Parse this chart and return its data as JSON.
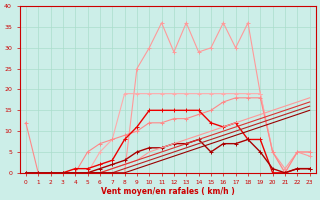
{
  "title": "",
  "xlabel": "Vent moyen/en rafales ( km/h )",
  "ylabel": "",
  "xlim": [
    -0.5,
    23.5
  ],
  "ylim": [
    0,
    40
  ],
  "xticks": [
    0,
    1,
    2,
    3,
    4,
    5,
    6,
    7,
    8,
    9,
    10,
    11,
    12,
    13,
    14,
    15,
    16,
    17,
    18,
    19,
    20,
    21,
    22,
    23
  ],
  "yticks": [
    0,
    5,
    10,
    15,
    20,
    25,
    30,
    35,
    40
  ],
  "background_color": "#cceee8",
  "grid_color": "#aaddcc",
  "axis_color": "#cc0000",
  "series": [
    {
      "x": [
        0,
        1,
        2,
        3,
        4,
        5,
        6,
        7,
        8,
        9,
        10,
        11,
        12,
        13,
        14,
        15,
        16,
        17,
        18,
        19,
        20,
        21,
        22,
        23
      ],
      "y": [
        0,
        0,
        0,
        0,
        0,
        0,
        0,
        0,
        0,
        25,
        30,
        36,
        29,
        36,
        29,
        30,
        36,
        30,
        36,
        19,
        5,
        1,
        5,
        4
      ],
      "color": "#ff9999",
      "lw": 0.8,
      "marker": "+",
      "ms": 3
    },
    {
      "x": [
        0,
        1,
        2,
        3,
        4,
        5,
        6,
        7,
        8,
        9,
        10,
        11,
        12,
        13,
        14,
        15,
        16,
        17,
        18,
        19,
        20,
        21,
        22,
        23
      ],
      "y": [
        0,
        0,
        0,
        0,
        0,
        0,
        5,
        8,
        19,
        19,
        19,
        19,
        19,
        19,
        19,
        19,
        19,
        19,
        19,
        19,
        5,
        0,
        5,
        5
      ],
      "color": "#ffaaaa",
      "lw": 0.8,
      "marker": "+",
      "ms": 3
    },
    {
      "x": [
        0,
        1,
        2,
        3,
        4,
        5,
        6,
        7,
        8,
        9,
        10,
        11,
        12,
        13,
        14,
        15,
        16,
        17,
        18,
        19,
        20,
        21,
        22,
        23
      ],
      "y": [
        12,
        0,
        0,
        0,
        0,
        5,
        7,
        8,
        9,
        10,
        12,
        12,
        13,
        13,
        14,
        15,
        17,
        18,
        18,
        18,
        5,
        0,
        5,
        5
      ],
      "color": "#ff8888",
      "lw": 0.8,
      "marker": "+",
      "ms": 3
    },
    {
      "x": [
        0,
        1,
        2,
        3,
        4,
        5,
        6,
        7,
        8,
        9,
        10,
        11,
        12,
        13,
        14,
        15,
        16,
        17,
        18,
        19,
        20,
        21,
        22,
        23
      ],
      "y": [
        0,
        0,
        0,
        0,
        1,
        1,
        2,
        3,
        8,
        11,
        15,
        15,
        15,
        15,
        15,
        12,
        11,
        12,
        8,
        8,
        0,
        0,
        1,
        1
      ],
      "color": "#ee0000",
      "lw": 1.0,
      "marker": "+",
      "ms": 3.5
    },
    {
      "x": [
        0,
        1,
        2,
        3,
        4,
        5,
        6,
        7,
        8,
        9,
        10,
        11,
        12,
        13,
        14,
        15,
        16,
        17,
        18,
        19,
        20,
        21,
        22,
        23
      ],
      "y": [
        0,
        0,
        0,
        0,
        0,
        0,
        1,
        2,
        3,
        5,
        6,
        6,
        7,
        7,
        8,
        5,
        7,
        7,
        8,
        5,
        1,
        0,
        1,
        1
      ],
      "color": "#aa0000",
      "lw": 1.0,
      "marker": "+",
      "ms": 3.5
    },
    {
      "x": [
        0,
        1,
        2,
        3,
        4,
        5,
        6,
        7,
        8,
        9,
        10,
        11,
        12,
        13,
        14,
        15,
        16,
        17,
        18,
        19,
        20,
        21,
        22,
        23
      ],
      "y": [
        0,
        0,
        0,
        0,
        0,
        0,
        0,
        1,
        2,
        3,
        5,
        6,
        7,
        8,
        9,
        10,
        11,
        12,
        13,
        14,
        15,
        16,
        17,
        18
      ],
      "color": "#ff9999",
      "lw": 0.8,
      "marker": null,
      "ms": 0
    },
    {
      "x": [
        0,
        1,
        2,
        3,
        4,
        5,
        6,
        7,
        8,
        9,
        10,
        11,
        12,
        13,
        14,
        15,
        16,
        17,
        18,
        19,
        20,
        21,
        22,
        23
      ],
      "y": [
        0,
        0,
        0,
        0,
        0,
        0,
        0,
        1,
        2,
        3,
        4,
        5,
        6,
        7,
        8,
        9,
        10,
        11,
        12,
        13,
        14,
        15,
        16,
        17
      ],
      "color": "#dd3333",
      "lw": 0.8,
      "marker": null,
      "ms": 0
    },
    {
      "x": [
        0,
        1,
        2,
        3,
        4,
        5,
        6,
        7,
        8,
        9,
        10,
        11,
        12,
        13,
        14,
        15,
        16,
        17,
        18,
        19,
        20,
        21,
        22,
        23
      ],
      "y": [
        0,
        0,
        0,
        0,
        0,
        0,
        0,
        0,
        1,
        2,
        3,
        4,
        5,
        6,
        7,
        8,
        9,
        10,
        11,
        12,
        13,
        14,
        15,
        16
      ],
      "color": "#bb2222",
      "lw": 0.8,
      "marker": null,
      "ms": 0
    },
    {
      "x": [
        0,
        1,
        2,
        3,
        4,
        5,
        6,
        7,
        8,
        9,
        10,
        11,
        12,
        13,
        14,
        15,
        16,
        17,
        18,
        19,
        20,
        21,
        22,
        23
      ],
      "y": [
        0,
        0,
        0,
        0,
        0,
        0,
        0,
        0,
        0,
        1,
        2,
        3,
        4,
        5,
        6,
        7,
        8,
        9,
        10,
        11,
        12,
        13,
        14,
        15
      ],
      "color": "#990000",
      "lw": 0.8,
      "marker": null,
      "ms": 0
    }
  ]
}
